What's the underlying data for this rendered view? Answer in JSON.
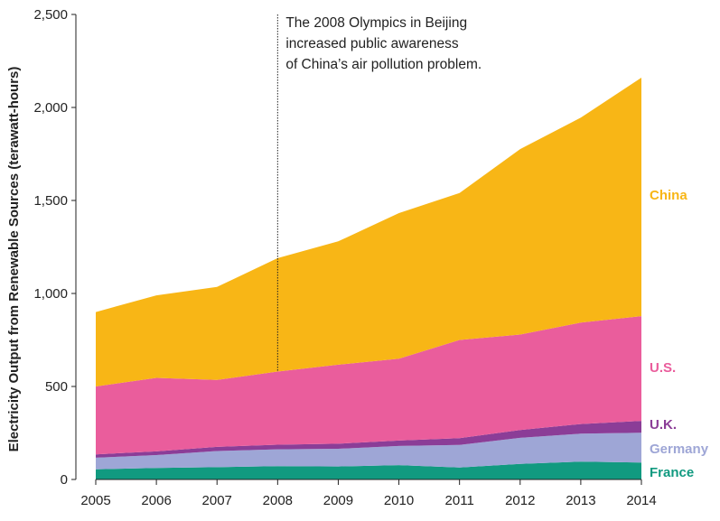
{
  "chart_data": {
    "type": "area",
    "stacked": true,
    "title": "",
    "xlabel": "",
    "ylabel": "Electricity Output from Renewable Sources (terawatt-hours)",
    "x": [
      2005,
      2006,
      2007,
      2008,
      2009,
      2010,
      2011,
      2012,
      2013,
      2014
    ],
    "ylim": [
      0,
      2500
    ],
    "yticks": [
      0,
      500,
      1000,
      1500,
      2000,
      2500
    ],
    "ytick_labels": [
      "0",
      "500",
      "1,000",
      "1,500",
      "2,000",
      "2,500"
    ],
    "grid": false,
    "legend": "direct labels at right end of each area",
    "series": [
      {
        "name": "France",
        "color": "#119a80",
        "values": [
          55,
          62,
          66,
          72,
          70,
          77,
          64,
          84,
          96,
          91
        ]
      },
      {
        "name": "Germany",
        "color": "#9ea6d6",
        "values": [
          62,
          69,
          87,
          90,
          95,
          103,
          122,
          140,
          150,
          160
        ]
      },
      {
        "name": "U.K.",
        "color": "#8b3d97",
        "values": [
          18,
          20,
          22,
          25,
          27,
          29,
          36,
          42,
          52,
          64
        ]
      },
      {
        "name": "U.S.",
        "color": "#ea5d9c",
        "values": [
          365,
          395,
          360,
          393,
          425,
          440,
          528,
          513,
          545,
          563
        ]
      },
      {
        "name": "China",
        "color": "#f8b616",
        "values": [
          400,
          444,
          500,
          610,
          663,
          783,
          790,
          997,
          1102,
          1282
        ]
      }
    ],
    "annotation": {
      "x": 2008,
      "lines": [
        "The 2008 Olympics in Beijing",
        "increased public awareness",
        "of China’s air pollution problem."
      ]
    }
  }
}
